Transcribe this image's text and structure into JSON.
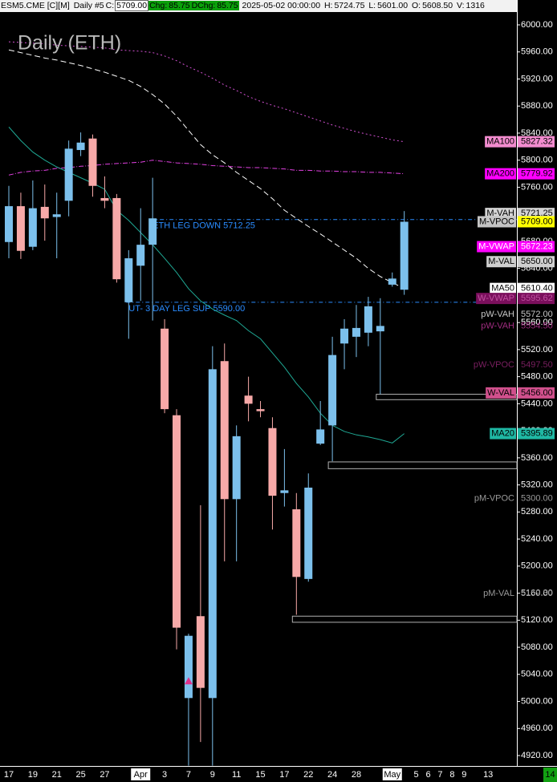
{
  "chart_data": {
    "type": "candlestick",
    "title": "Daily (ETH)",
    "header": {
      "symbol": "ESM5.CME [C][M]",
      "interval": "Daily #5",
      "close_label": "C:",
      "close": "5709.00",
      "chg_label": "Chg:",
      "chg": "85.75",
      "dchg_label": "DChg:",
      "dchg": "85.75",
      "datetime": "2025-05-02 00:00:00",
      "high_label": "H:",
      "high": "5724.75",
      "low_label": "L:",
      "low": "5601.00",
      "open_label": "O:",
      "open": "5608.50",
      "volume_label": "V:",
      "volume": "1316"
    },
    "categories": [
      "17",
      null,
      "19",
      null,
      "21",
      null,
      "25",
      null,
      "27",
      null,
      null,
      "Apr",
      null,
      "3",
      null,
      "7",
      null,
      "9",
      null,
      "11",
      null,
      "15",
      null,
      "17",
      null,
      "22",
      null,
      "24",
      null,
      "28",
      null,
      null,
      "May",
      null
    ],
    "future_categories": [
      "5",
      "6",
      "7",
      "8",
      "9",
      null,
      "13"
    ],
    "up_color": "#7cc0ec",
    "down_color": "#f7a9a8",
    "open": [
      5679,
      5732,
      5672,
      5731,
      5716,
      5740,
      5815,
      5832,
      5744,
      5744,
      5590,
      5644,
      5675,
      5551,
      5423,
      5005,
      5126,
      5005,
      5503,
      5299,
      5452,
      5432,
      5404,
      5308,
      5284,
      5181,
      5381,
      5408,
      5529,
      5539,
      5545,
      5547,
      5616,
      5608.5
    ],
    "high": [
      5762,
      5752,
      5770,
      5764,
      5752,
      5829,
      5841,
      5838,
      5776,
      5750,
      5667,
      5729,
      5774,
      5565,
      5432,
      5100,
      5290,
      5525,
      5529,
      5408,
      5480,
      5444,
      5420,
      5373,
      5308,
      5337,
      5444,
      5539,
      5565,
      5586,
      5598,
      5596,
      5634,
      5724.75
    ],
    "low": [
      5655,
      5654,
      5667,
      5681,
      5655,
      5717,
      5806,
      5746,
      5729,
      5619,
      5536,
      5592,
      5563,
      5426,
      5077,
      4905,
      4940,
      4905,
      5207,
      5207,
      5414,
      5420,
      5254,
      5288,
      5128,
      5177,
      5379,
      5355,
      5491,
      5509,
      5525,
      5454,
      5613,
      5601
    ],
    "close": [
      5732,
      5666,
      5729,
      5714,
      5720,
      5817,
      5826,
      5762,
      5740,
      5624,
      5655,
      5675,
      5714,
      5432,
      5109,
      5097,
      5020,
      5491,
      5299,
      5392,
      5440,
      5429,
      5304,
      5312,
      5184,
      5316,
      5402,
      5512,
      5551,
      5552,
      5584,
      5555,
      5625,
      5709
    ],
    "series": [
      {
        "name": "MA20",
        "color": "#1fa894",
        "style": "solid",
        "values": [
          5849,
          5829,
          5812,
          5800,
          5790,
          5782,
          5774,
          5766,
          5757,
          5726,
          5711,
          5693,
          5675,
          5655,
          5634,
          5610,
          5592,
          5580,
          5571,
          5563,
          5548,
          5536,
          5515,
          5494,
          5470,
          5450,
          5426,
          5408,
          5399,
          5394,
          5391,
          5387,
          5382,
          5395.89
        ]
      },
      {
        "name": "MA50",
        "color": "#ffffff",
        "style": "dashed",
        "values": [
          5963,
          5959,
          5955,
          5951,
          5948,
          5944,
          5940,
          5935,
          5930,
          5924,
          5918,
          5909,
          5897,
          5883,
          5865,
          5844,
          5823,
          5808,
          5796,
          5782,
          5770,
          5758,
          5743,
          5726,
          5714,
          5702,
          5691,
          5679,
          5667,
          5655,
          5640,
          5628,
          5619,
          5610.4
        ]
      },
      {
        "name": "MA100",
        "color": "#d050d0",
        "style": "dotted",
        "values": [
          5975,
          5974,
          5973,
          5972,
          5970,
          5969,
          5968,
          5967,
          5966,
          5963,
          5962,
          5961,
          5959,
          5954,
          5947,
          5938,
          5930,
          5921,
          5911,
          5903,
          5894,
          5887,
          5881,
          5876,
          5870,
          5864,
          5858,
          5852,
          5847,
          5842,
          5838,
          5834,
          5830,
          5827.32
        ]
      },
      {
        "name": "MA200",
        "color": "#e040e0",
        "style": "dashdot",
        "values": [
          5778,
          5782,
          5784,
          5785,
          5788,
          5789,
          5791,
          5792,
          5794,
          5795,
          5796,
          5797,
          5800,
          5798,
          5796,
          5795,
          5794,
          5792,
          5791,
          5790,
          5789,
          5789,
          5788,
          5787,
          5785,
          5785,
          5784,
          5784,
          5783,
          5783,
          5782,
          5782,
          5781,
          5779.92
        ]
      }
    ],
    "annotations": [
      {
        "text": "ETH LEG DOWN  5712.25",
        "value": 5712.25,
        "start": 12,
        "color": "#2a8cff"
      },
      {
        "text": "UT- 3 DAY LEG SUP  5590.00",
        "value": 5590,
        "start": 10,
        "color": "#2a8cff"
      }
    ],
    "zones": [
      {
        "start": 31,
        "top": 5454,
        "bottom": 5446
      },
      {
        "start": 27,
        "top": 5354,
        "bottom": 5344
      },
      {
        "start": 24,
        "top": 5126,
        "bottom": 5117
      }
    ],
    "markers": [
      {
        "index": 15,
        "value": 5030,
        "color": "#e0308a"
      }
    ],
    "right_labels": [
      {
        "name": "MA100",
        "value": 5827.32,
        "label": "5827.32",
        "bg": "#f38ccf",
        "fg": "#000000"
      },
      {
        "name": "MA200",
        "value": 5779.92,
        "label": "5779.92",
        "bg": "#ff00ff",
        "fg": "#000000"
      },
      {
        "name": "M-VAH",
        "value": 5721.25,
        "label": "5721.25",
        "bg": "#d4d4d4",
        "fg": "#000000"
      },
      {
        "name": "M-VPOC",
        "value": 5709,
        "label": "5709.00",
        "bg": "#c4c4c4",
        "fg": "#000000",
        "value_bg": "#ffff00"
      },
      {
        "name": "M-VWAP",
        "value": 5672.23,
        "label": "5672.23",
        "bg": "#ff00ff",
        "fg": "#ffffff"
      },
      {
        "name": "M-VAL",
        "value": 5650,
        "label": "5650.00",
        "bg": "#cfcfcf",
        "fg": "#000000"
      },
      {
        "name": "MA50",
        "value": 5610.4,
        "label": "5610.40",
        "bg": "#ffffff",
        "fg": "#000000"
      },
      {
        "name": "W-VWAP",
        "value": 5595.62,
        "label": "5595.62",
        "bg": "#7a0f5c",
        "fg": "#c050a0"
      },
      {
        "name": "pW-VAH",
        "value": 5572,
        "label": "5572.00",
        "fg": "#c8c8c8"
      },
      {
        "name": "pW-VAH",
        "value": 5554.5,
        "label": "5554.50",
        "fg": "#a02c80"
      },
      {
        "name": "pW-VPOC",
        "value": 5497.5,
        "label": "5497.50",
        "fg": "#7a1f60"
      },
      {
        "name": "W-VAL",
        "value": 5456,
        "label": "5456.00",
        "bg": "#d0508c",
        "fg": "#000000"
      },
      {
        "name": "MA20",
        "value": 5395.89,
        "label": "5395.89",
        "bg": "#1fb8a4",
        "fg": "#000000"
      },
      {
        "name": "pM-VPOC",
        "value": 5300,
        "label": "5300.00",
        "fg": "#9a9a9a"
      },
      {
        "name": "pM-VAL",
        "value": 5159.5,
        "label": "5159.50",
        "fg": "#9a9a9a"
      }
    ],
    "corner_label": "14",
    "ylim": [
      4904.6,
      6036.75
    ],
    "yticks": [
      {
        "value": 6000,
        "label": "6000.00"
      },
      {
        "value": 5960,
        "label": "5960.00"
      },
      {
        "value": 5920,
        "label": "5920.00"
      },
      {
        "value": 5880,
        "label": "5880.00"
      },
      {
        "value": 5840,
        "label": "5840.00"
      },
      {
        "value": 5800,
        "label": "5800.00"
      },
      {
        "value": 5760,
        "label": "5760.00"
      },
      {
        "value": 5720,
        "label": "5720.00"
      },
      {
        "value": 5680,
        "label": "5680.00"
      },
      {
        "value": 5640,
        "label": "5640.00"
      },
      {
        "value": 5600,
        "label": "5600.00"
      },
      {
        "value": 5560,
        "label": "5560.00"
      },
      {
        "value": 5520,
        "label": "5520.00"
      },
      {
        "value": 5480,
        "label": "5480.00"
      },
      {
        "value": 5440,
        "label": "5440.00"
      },
      {
        "value": 5400,
        "label": "5400.00"
      },
      {
        "value": 5360,
        "label": "5360.00"
      },
      {
        "value": 5320,
        "label": "5320.00"
      },
      {
        "value": 5280,
        "label": "5280.00"
      },
      {
        "value": 5240,
        "label": "5240.00"
      },
      {
        "value": 5200,
        "label": "5200.00"
      },
      {
        "value": 5160,
        "label": "5160.00"
      },
      {
        "value": 5120,
        "label": "5120.00"
      },
      {
        "value": 5080,
        "label": "5080.00"
      },
      {
        "value": 5040,
        "label": "5040.00"
      },
      {
        "value": 5000,
        "label": "5000.00"
      },
      {
        "value": 4960,
        "label": "4960.00"
      },
      {
        "value": 4920,
        "label": "4920.00"
      }
    ],
    "grid": false
  }
}
